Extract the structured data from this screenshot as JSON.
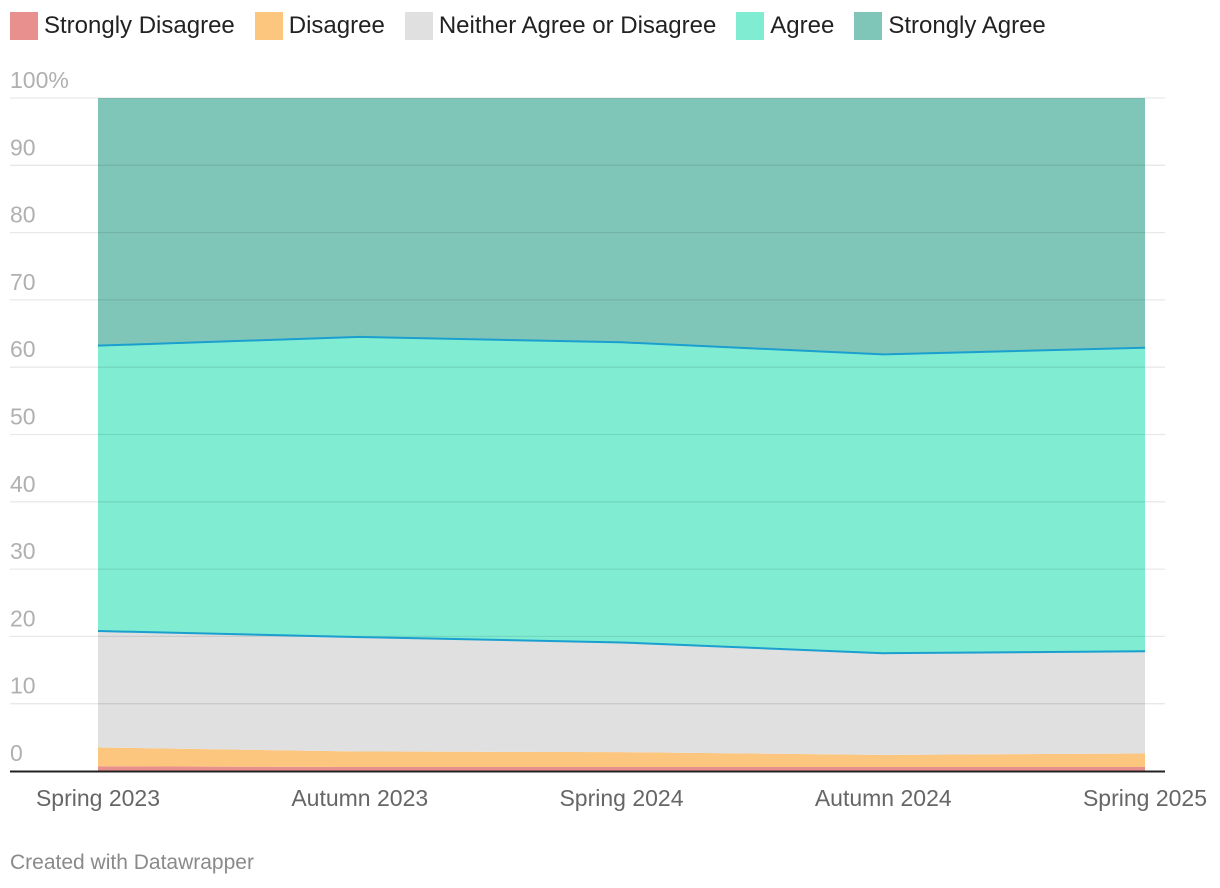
{
  "chart_data": {
    "type": "area",
    "stacked": true,
    "categories": [
      "Spring 2023",
      "Autumn 2023",
      "Spring 2024",
      "Autumn 2024",
      "Spring 2025"
    ],
    "series": [
      {
        "name": "Strongly Disagree",
        "color": "#e8908e",
        "values": [
          0.7,
          0.6,
          0.6,
          0.6,
          0.6
        ]
      },
      {
        "name": "Disagree",
        "color": "#fcc67e",
        "values": [
          2.8,
          2.3,
          2.2,
          1.8,
          2.0
        ]
      },
      {
        "name": "Neither Agree or Disagree",
        "color": "#e0e0e0",
        "values": [
          17.3,
          17.0,
          16.3,
          15.1,
          15.2
        ]
      },
      {
        "name": "Agree",
        "color": "#80edd3",
        "values": [
          42.4,
          44.6,
          44.6,
          44.4,
          45.1
        ]
      },
      {
        "name": "Strongly Agree",
        "color": "#80c6b8",
        "values": [
          36.8,
          35.5,
          36.3,
          38.1,
          37.1
        ]
      }
    ],
    "boundary_color": "#1a9fcf",
    "y_ticks": [
      "0",
      "10",
      "20",
      "30",
      "40",
      "50",
      "60",
      "70",
      "80",
      "90",
      "100%"
    ],
    "ylim": [
      0,
      100
    ],
    "grid": true,
    "legend_position": "top-left"
  },
  "footer": {
    "credit": "Created with Datawrapper"
  }
}
